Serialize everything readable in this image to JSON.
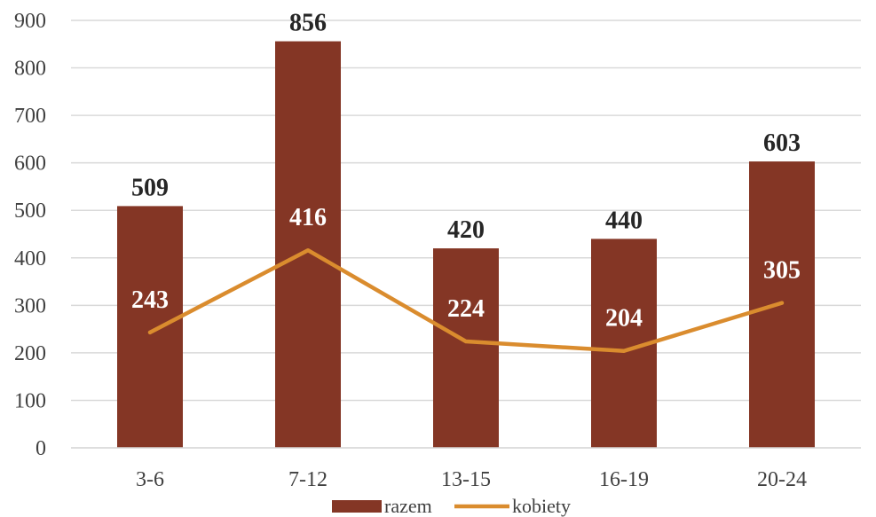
{
  "chart_data": {
    "type": "bar",
    "title": "",
    "xlabel": "",
    "ylabel": "",
    "categories": [
      "3-6",
      "7-12",
      "13-15",
      "16-19",
      "20-24"
    ],
    "ylim": [
      0,
      900
    ],
    "yticks": [
      0,
      100,
      200,
      300,
      400,
      500,
      600,
      700,
      800,
      900
    ],
    "grid": true,
    "legend_position": "bottom",
    "series": [
      {
        "name": "razem",
        "kind": "bar",
        "color": "#843625",
        "values": [
          509,
          856,
          420,
          440,
          603
        ]
      },
      {
        "name": "kobiety",
        "kind": "line",
        "color": "#DA8C2E",
        "values": [
          243,
          416,
          224,
          204,
          305
        ]
      }
    ]
  }
}
